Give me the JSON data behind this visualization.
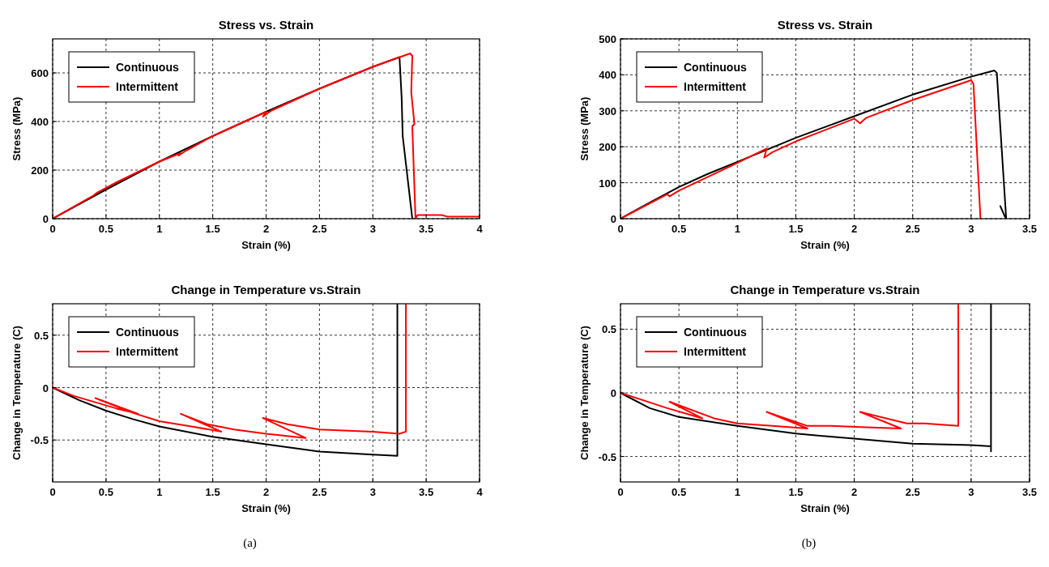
{
  "chart_data": [
    {
      "type": "line",
      "title": "Stress vs. Strain",
      "xlabel": "Strain (%)",
      "ylabel": "Stress (MPa)",
      "xlim": [
        0,
        4
      ],
      "xticks": [
        0,
        0.5,
        1,
        1.5,
        2,
        2.5,
        3,
        3.5,
        4
      ],
      "ylim": [
        0,
        740
      ],
      "yticks": [
        0,
        200,
        400,
        600
      ],
      "grid": true,
      "legend": "top left",
      "series": [
        {
          "name": "Continuous",
          "color": "#000000",
          "x": [
            0,
            0.5,
            1,
            1.5,
            2,
            2.5,
            3,
            3.25,
            3.27,
            3.28,
            3.37
          ],
          "values": [
            0,
            120,
            235,
            340,
            440,
            535,
            625,
            665,
            500,
            340,
            0
          ]
        },
        {
          "name": "Intermittent",
          "color": "#ff0000",
          "x": [
            0,
            0.4,
            0.38,
            0.42,
            0.6,
            1,
            1.2,
            1.18,
            1.25,
            1.5,
            2,
            1.97,
            2.05,
            2.5,
            3,
            3.35,
            3.37,
            3.36,
            3.39,
            3.37,
            3.38,
            3.4,
            3.42,
            3.65,
            3.7,
            4
          ],
          "values": [
            0,
            100,
            95,
            108,
            150,
            235,
            270,
            260,
            280,
            340,
            440,
            420,
            445,
            535,
            625,
            680,
            670,
            520,
            390,
            380,
            250,
            0,
            15,
            15,
            8,
            8
          ]
        }
      ]
    },
    {
      "type": "line",
      "title": "Stress vs. Strain",
      "xlabel": "Strain (%)",
      "ylabel": "Stress (MPa)",
      "xlim": [
        0,
        3.5
      ],
      "xticks": [
        0,
        0.5,
        1,
        1.5,
        2,
        2.5,
        3,
        3.5
      ],
      "ylim": [
        0,
        500
      ],
      "yticks": [
        0,
        100,
        200,
        300,
        400,
        500
      ],
      "grid": true,
      "legend": "top left",
      "series": [
        {
          "name": "Continuous",
          "color": "#000000",
          "x": [
            0,
            0.25,
            0.5,
            0.75,
            1,
            1.5,
            2,
            2.5,
            3,
            3.2,
            3.22,
            3.3,
            null,
            3.25,
            3.29
          ],
          "values": [
            0,
            45,
            88,
            125,
            158,
            225,
            285,
            345,
            395,
            412,
            405,
            0,
            null,
            35,
            5
          ]
        },
        {
          "name": "Intermittent",
          "color": "#ff0000",
          "x": [
            0,
            0.4,
            0.42,
            0.5,
            1,
            1.25,
            1.23,
            1.3,
            1.5,
            2,
            2.05,
            2.1,
            2.5,
            3,
            3.02,
            3.08
          ],
          "values": [
            0,
            68,
            62,
            78,
            155,
            195,
            170,
            185,
            215,
            278,
            265,
            280,
            330,
            385,
            375,
            0
          ]
        }
      ]
    },
    {
      "type": "line",
      "title": "Change in Temperature vs.Strain",
      "xlabel": "Strain (%)",
      "ylabel": "Change in Temperature (C)",
      "xlim": [
        0,
        4
      ],
      "xticks": [
        0,
        0.5,
        1,
        1.5,
        2,
        2.5,
        3,
        3.5,
        4
      ],
      "ylim": [
        -0.9,
        0.8
      ],
      "yticks": [
        {
          "value": -0.5,
          "label": "-0.5"
        },
        0,
        0.5
      ],
      "grid": true,
      "legend": "top left",
      "annotations": [
        "(a)"
      ],
      "series": [
        {
          "name": "Continuous",
          "color": "#000000",
          "x": [
            0,
            0.25,
            0.5,
            0.75,
            1,
            1.5,
            2,
            2.5,
            3,
            3.23,
            3.23
          ],
          "values": [
            0,
            -0.12,
            -0.22,
            -0.3,
            -0.37,
            -0.47,
            -0.54,
            -0.61,
            -0.64,
            -0.65,
            0.8
          ]
        },
        {
          "name": "Intermittent",
          "color": "#ff0000",
          "x": [
            0,
            0.2,
            0.4,
            0.6,
            0.8,
            0.4,
            0.75,
            1,
            1.3,
            1.58,
            1.2,
            1.45,
            1.7,
            2,
            2.37,
            1.97,
            2.2,
            2.5,
            3,
            3.25,
            3.31,
            3.31
          ],
          "values": [
            0,
            -0.08,
            -0.14,
            -0.2,
            -0.25,
            -0.1,
            -0.24,
            -0.32,
            -0.37,
            -0.42,
            -0.25,
            -0.35,
            -0.4,
            -0.44,
            -0.48,
            -0.29,
            -0.35,
            -0.4,
            -0.42,
            -0.44,
            -0.42,
            0.8
          ]
        }
      ]
    },
    {
      "type": "line",
      "title": "Change in Temperature vs.Strain",
      "xlabel": "Strain (%)",
      "ylabel": "Change in Temperature (C)",
      "xlim": [
        0,
        3.5
      ],
      "xticks": [
        0,
        0.5,
        1,
        1.5,
        2,
        2.5,
        3,
        3.5
      ],
      "ylim": [
        -0.7,
        0.7
      ],
      "yticks": [
        {
          "value": -0.5,
          "label": "-0.5"
        },
        0,
        0.5
      ],
      "grid": true,
      "legend": "top left",
      "annotations": [
        "(b)"
      ],
      "series": [
        {
          "name": "Continuous",
          "color": "#000000",
          "x": [
            0,
            0.25,
            0.5,
            1,
            1.5,
            2,
            2.5,
            3,
            3.17,
            3.17,
            3.17
          ],
          "values": [
            0,
            -0.12,
            -0.19,
            -0.26,
            -0.32,
            -0.36,
            -0.4,
            -0.41,
            -0.42,
            -0.46,
            0.7
          ]
        },
        {
          "name": "Intermittent",
          "color": "#ff0000",
          "x": [
            0,
            0.4,
            0.7,
            0.42,
            0.8,
            1,
            1.3,
            1.6,
            1.25,
            1.6,
            1.8,
            2.1,
            2.4,
            2.05,
            2.45,
            2.6,
            2.89,
            2.89
          ],
          "values": [
            0,
            -0.12,
            -0.2,
            -0.07,
            -0.2,
            -0.24,
            -0.26,
            -0.28,
            -0.15,
            -0.26,
            -0.26,
            -0.27,
            -0.28,
            -0.15,
            -0.24,
            -0.24,
            -0.26,
            0.7
          ]
        }
      ]
    }
  ]
}
